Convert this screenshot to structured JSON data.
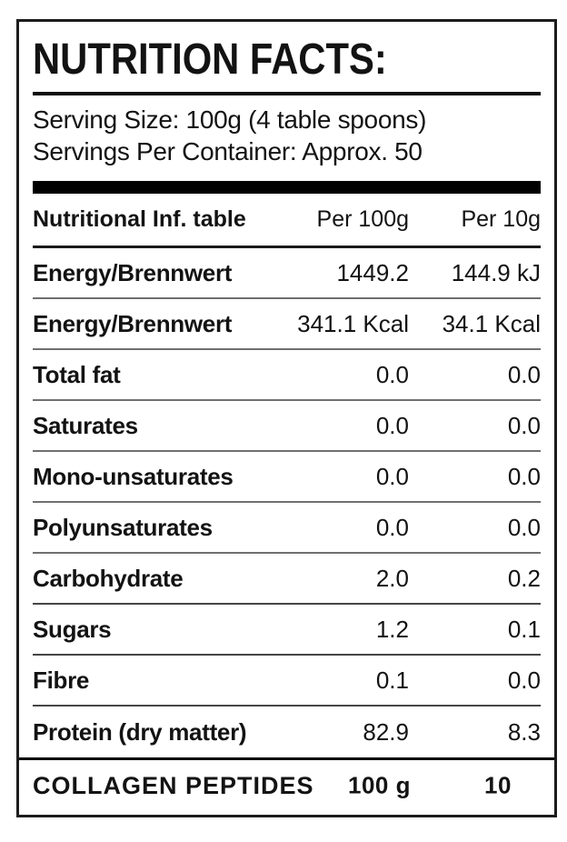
{
  "label": {
    "title": "NUTRITION FACTS:",
    "serving": {
      "size_line": "Serving Size: 100g (4 table spoons)",
      "servings_line": "Servings Per Container: Approx. 50"
    },
    "table": {
      "columns": [
        "Nutritional Inf. table",
        "Per 100g",
        "Per 10g"
      ],
      "rows": [
        {
          "name": "Energy/Brennwert",
          "per_100g": "1449.2",
          "per_10g": "144.9 kJ"
        },
        {
          "name": "Energy/Brennwert",
          "per_100g": "341.1 Kcal",
          "per_10g": "34.1 Kcal"
        },
        {
          "name": "Total fat",
          "per_100g": "0.0",
          "per_10g": "0.0"
        },
        {
          "name": "Saturates",
          "per_100g": "0.0",
          "per_10g": "0.0"
        },
        {
          "name": "Mono-unsaturates",
          "per_100g": "0.0",
          "per_10g": "0.0"
        },
        {
          "name": "Polyunsaturates",
          "per_100g": "0.0",
          "per_10g": "0.0"
        },
        {
          "name": "Carbohydrate",
          "per_100g": "2.0",
          "per_10g": "0.2"
        },
        {
          "name": "Sugars",
          "per_100g": "1.2",
          "per_10g": "0.1"
        },
        {
          "name": "Fibre",
          "per_100g": "0.1",
          "per_10g": "0.0"
        },
        {
          "name": "Protein (dry matter)",
          "per_100g": "82.9",
          "per_10g": "8.3"
        }
      ],
      "footer": {
        "name": "COLLAGEN PEPTIDES",
        "per_100g": "100 g",
        "per_10g": "10"
      }
    },
    "colors": {
      "background": "#ffffff",
      "text": "#131313",
      "border": "#1c1c1c",
      "separator_bar": "#000000",
      "rule_light": "#707070",
      "rule_dark": "#454545"
    }
  }
}
